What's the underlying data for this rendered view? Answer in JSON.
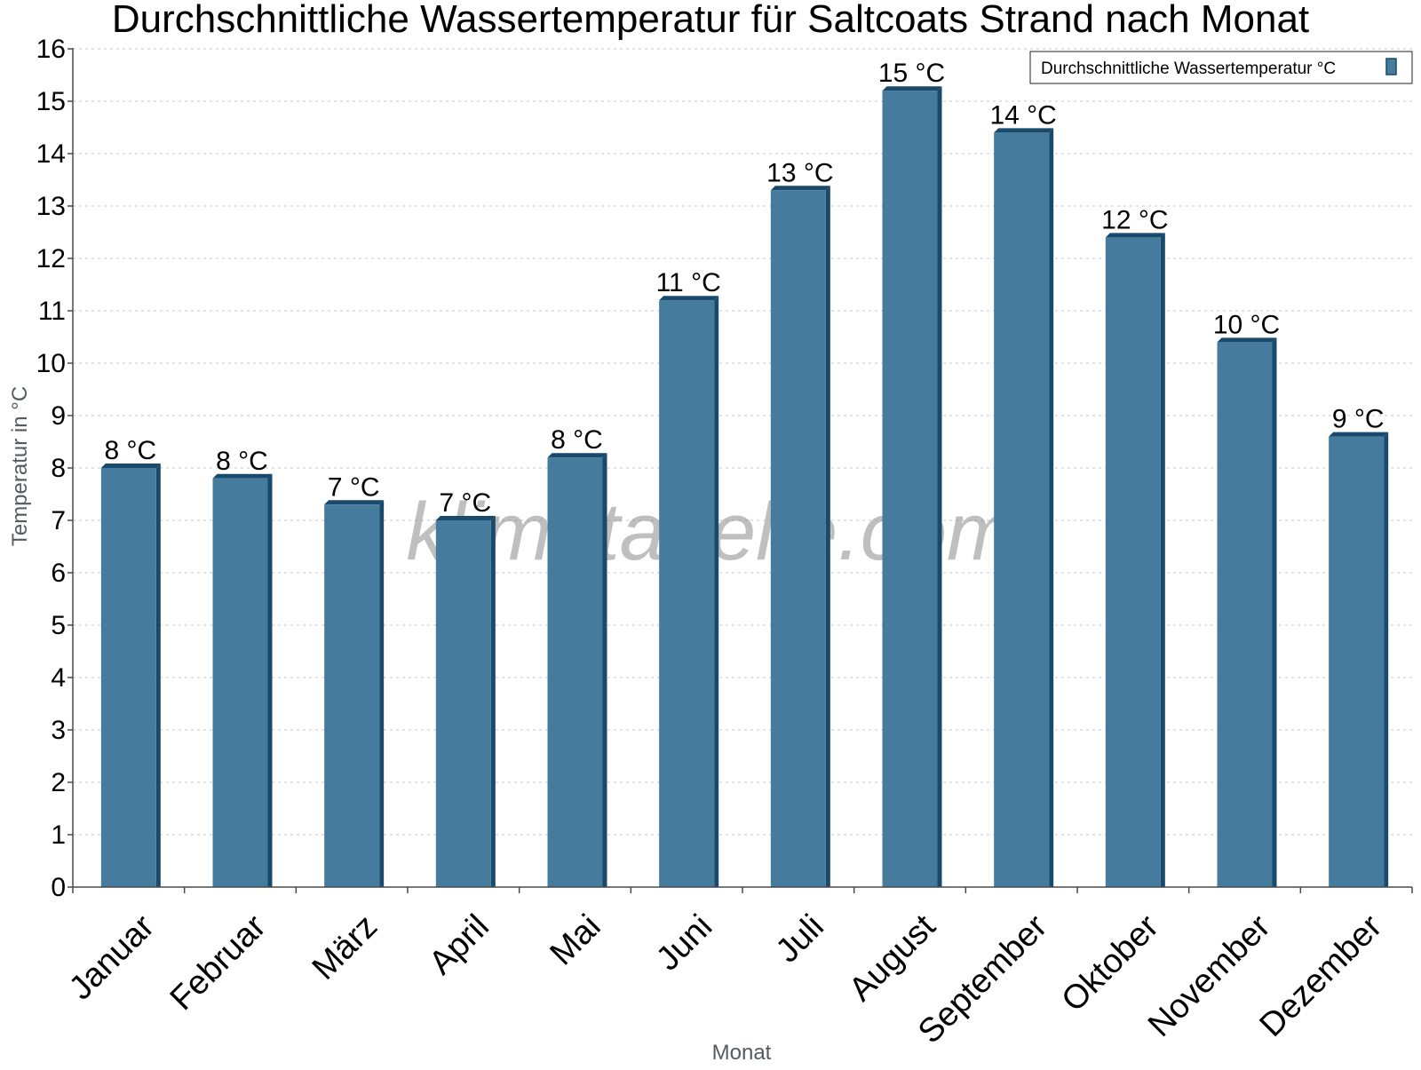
{
  "chart_data": {
    "type": "bar",
    "title": "Durchschnittliche Wassertemperatur für Saltcoats Strand nach Monat",
    "xlabel": "Monat",
    "ylabel": "Temperatur in °C",
    "categories": [
      "Januar",
      "Februar",
      "März",
      "April",
      "Mai",
      "Juni",
      "Juli",
      "August",
      "September",
      "Oktober",
      "November",
      "Dezember"
    ],
    "series": [
      {
        "name": "Durchschnittliche Wassertemperatur °C",
        "values": [
          8.0,
          7.8,
          7.3,
          7.0,
          8.2,
          11.2,
          13.3,
          15.2,
          14.4,
          12.4,
          10.4,
          8.6
        ],
        "labels": [
          "8 °C",
          "8 °C",
          "7 °C",
          "7 °C",
          "8 °C",
          "11 °C",
          "13 °C",
          "15 °C",
          "14 °C",
          "12 °C",
          "10 °C",
          "9 °C"
        ],
        "color": "#457b9d"
      }
    ],
    "ylim": [
      0,
      16
    ],
    "yticks": [
      "0",
      "1",
      "2",
      "3",
      "4",
      "5",
      "6",
      "7",
      "8",
      "9",
      "10",
      "11",
      "12",
      "13",
      "14",
      "15",
      "16"
    ],
    "grid": true,
    "legend": "top-right",
    "watermark": "klimatabelle.com"
  }
}
